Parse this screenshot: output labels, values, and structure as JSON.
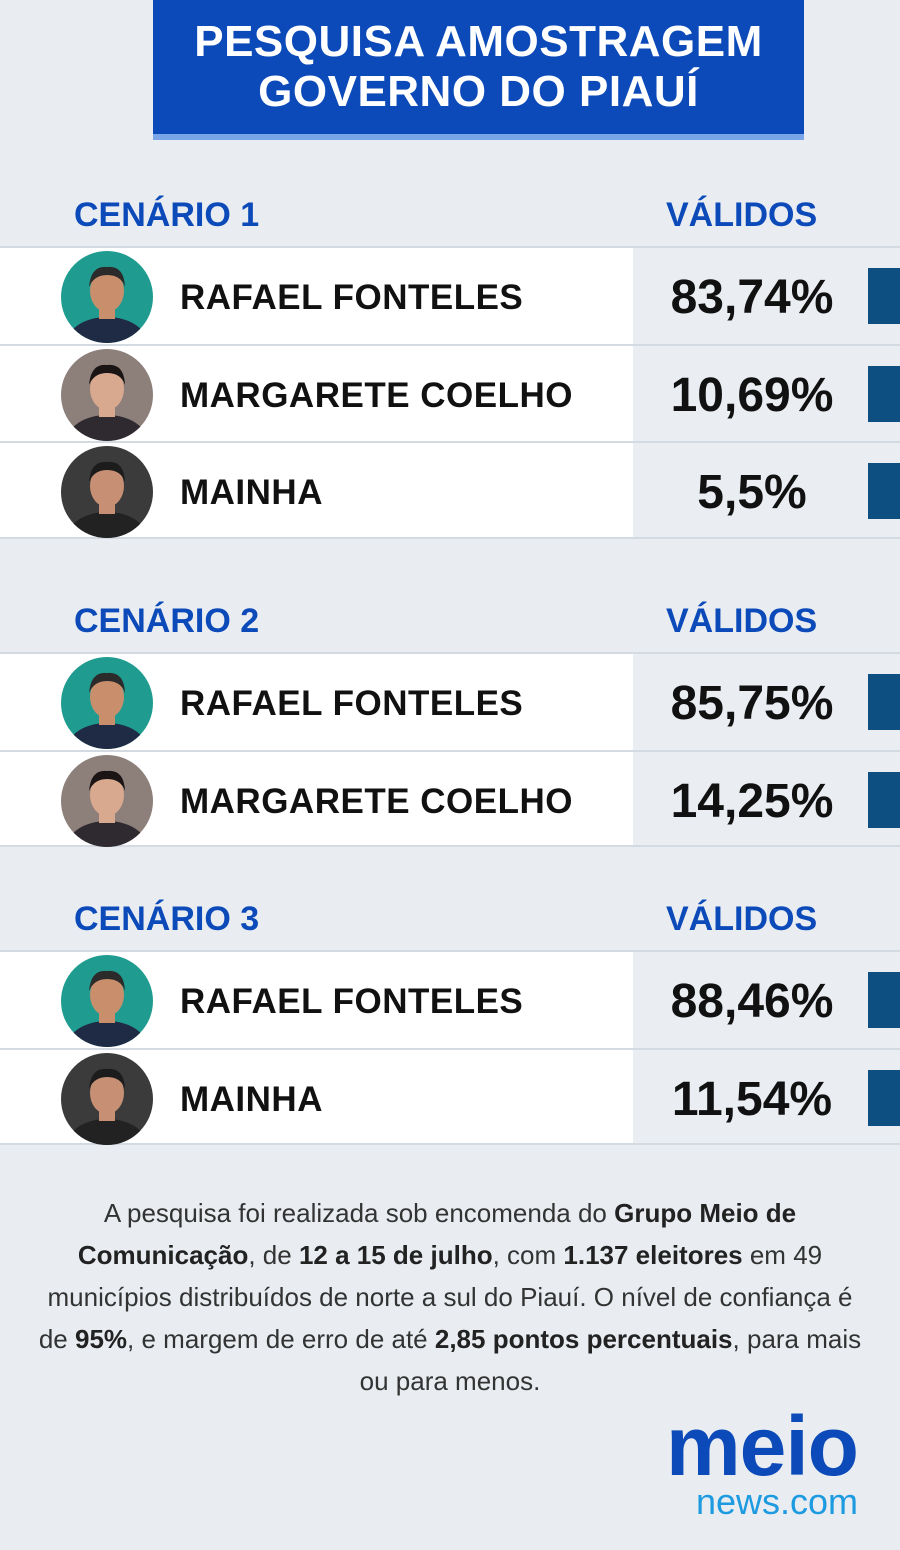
{
  "title": {
    "line1": "PESQUISA AMOSTRAGEM",
    "line2": "GOVERNO DO PIAUÍ"
  },
  "colors": {
    "brand_blue": "#0b4ab8",
    "bar": "#0e4f82",
    "logo_light": "#1d9ae0"
  },
  "chart_data": [
    {
      "type": "bar",
      "title": "CENÁRIO 1",
      "value_header": "VÁLIDOS",
      "categories": [
        "RAFAEL FONTELES",
        "MARGARETE COELHO",
        "MAINHA"
      ],
      "labels": [
        "83,74%",
        "10,69%",
        "5,5%"
      ],
      "values": [
        83.74,
        10.69,
        5.5
      ]
    },
    {
      "type": "bar",
      "title": "CENÁRIO 2",
      "value_header": "VÁLIDOS",
      "categories": [
        "RAFAEL FONTELES",
        "MARGARETE COELHO"
      ],
      "labels": [
        "85,75%",
        "14,25%"
      ],
      "values": [
        85.75,
        14.25
      ]
    },
    {
      "type": "bar",
      "title": "CENÁRIO 3",
      "value_header": "VÁLIDOS",
      "categories": [
        "RAFAEL FONTELES",
        "MAINHA"
      ],
      "labels": [
        "88,46%",
        "11,54%"
      ],
      "values": [
        88.46,
        11.54
      ]
    }
  ],
  "note": [
    {
      "t": "A pesquisa foi realizada sob encomenda do ",
      "b": false
    },
    {
      "t": "Grupo Meio de Comunicação",
      "b": true
    },
    {
      "t": ", de ",
      "b": false
    },
    {
      "t": "12 a 15 de julho",
      "b": true
    },
    {
      "t": ", com ",
      "b": false
    },
    {
      "t": "1.137 eleitores",
      "b": true
    },
    {
      "t": " em 49 municípios distribuídos de norte a sul do Piauí. O nível de confiança é de ",
      "b": false
    },
    {
      "t": "95%",
      "b": true
    },
    {
      "t": ", e margem de erro de até ",
      "b": false
    },
    {
      "t": "2,85 pontos percentuais",
      "b": true
    },
    {
      "t": ", para mais ou para menos.",
      "b": false
    }
  ],
  "logo": {
    "main": "meio",
    "sub": "news.com"
  }
}
